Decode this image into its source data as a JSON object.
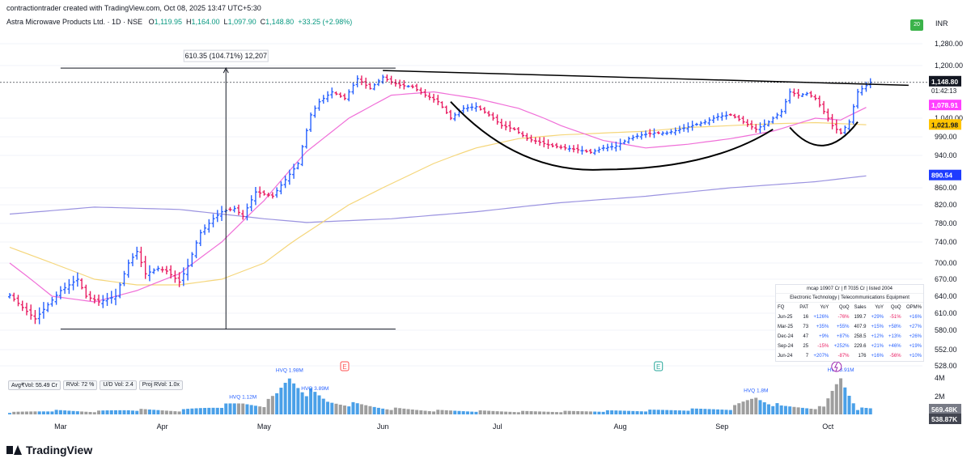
{
  "header": {
    "credit": "contractiontrader created with TradingView.com, Oct 08, 2025 13:47 UTC+5:30",
    "symbol": "Astra Microwave Products Ltd. · 1D · NSE",
    "o_label": "O",
    "o_val": "1,119.95",
    "h_label": "H",
    "h_val": "1,164.00",
    "l_label": "L",
    "l_val": "1,097.90",
    "c_label": "C",
    "c_val": "1,148.80",
    "change": "+33.25 (+2.98%)",
    "badge": "20",
    "currency": "INR"
  },
  "measure_label": "610.35 (104.71%) 12,207",
  "price_labels": {
    "last": "1,148.80",
    "countdown": "01:42:13",
    "ema_fast": "1,078.91",
    "ema_mid": "1,021.98",
    "ema_slow": "890.54",
    "volume_last": "569.48K",
    "volume_ma": "538.87K"
  },
  "volume_stats": [
    "Avg₹Vol: 55.49 Cr",
    "RVol: 72 %",
    "U/D Vol: 2.4",
    "Proj RVol: 1.0x"
  ],
  "volume_annotations": [
    "HVQ 1.12M",
    "HVQ 1.98M",
    "HVQ 3.89M",
    "HVQ 1.8M",
    "HVY 3.91M"
  ],
  "volume_axis": [
    "4M",
    "2M"
  ],
  "events": [
    "E",
    "E"
  ],
  "fundamentals": {
    "header": "mcap 10907 Cr  |  ff 7035 Cr  |  listed 2004",
    "sector": "Electronic Technology  |  Telecommunications Equipment",
    "columns": [
      "FQ",
      "PAT",
      "YoY",
      "QoQ",
      "Sales",
      "YoY",
      "QoQ",
      "OPM%"
    ],
    "rows": [
      [
        "Jun-25",
        "16",
        "+126%",
        "-76%",
        "199.7",
        "+29%",
        "-51%",
        "+16%"
      ],
      [
        "Mar-25",
        "73",
        "+35%",
        "+55%",
        "407.9",
        "+15%",
        "+58%",
        "+27%"
      ],
      [
        "Dec-24",
        "47",
        "+9%",
        "+87%",
        "258.5",
        "+12%",
        "+13%",
        "+26%"
      ],
      [
        "Sep-24",
        "25",
        "-15%",
        "+252%",
        "229.6",
        "+21%",
        "+46%",
        "+19%"
      ],
      [
        "Jun-24",
        "7",
        "+207%",
        "-87%",
        "176",
        "+16%",
        "-56%",
        "+10%"
      ]
    ]
  },
  "brand": "TradingView",
  "chart_data": {
    "type": "bar",
    "subtype": "ohlc",
    "ylim": [
      528,
      1280
    ],
    "y_ticks": [
      "1,280.00",
      "1,200.00",
      "1,148.80",
      "1,078.91",
      "1,040.00",
      "1,021.98",
      "990.00",
      "940.00",
      "890.54",
      "860.00",
      "820.00",
      "780.00",
      "740.00",
      "700.00",
      "670.00",
      "640.00",
      "610.00",
      "580.00",
      "552.00",
      "528.00"
    ],
    "months": [
      "Mar",
      "Apr",
      "May",
      "Jun",
      "Jul",
      "Aug",
      "Sep",
      "Oct"
    ],
    "colors": {
      "up": "#2962ff",
      "down": "#e91e63",
      "ema_fast": "#f06fd8",
      "ema_mid": "#f5d67a",
      "ema_slow": "#9b93e0",
      "pattern": "#000000"
    },
    "price_anchors": [
      [
        0,
        642
      ],
      [
        3,
        620
      ],
      [
        6,
        600
      ],
      [
        9,
        625
      ],
      [
        12,
        650
      ],
      [
        16,
        670
      ],
      [
        18,
        640
      ],
      [
        21,
        630
      ],
      [
        23,
        635
      ],
      [
        25,
        640
      ],
      [
        28,
        700
      ],
      [
        30,
        722
      ],
      [
        32,
        680
      ],
      [
        35,
        690
      ],
      [
        37,
        685
      ],
      [
        40,
        665
      ],
      [
        42,
        695
      ],
      [
        45,
        760
      ],
      [
        48,
        790
      ],
      [
        50,
        805
      ],
      [
        53,
        812
      ],
      [
        55,
        795
      ],
      [
        58,
        850
      ],
      [
        62,
        840
      ],
      [
        65,
        880
      ],
      [
        68,
        920
      ],
      [
        71,
        1050
      ],
      [
        73,
        1090
      ],
      [
        76,
        1120
      ],
      [
        79,
        1100
      ],
      [
        82,
        1160
      ],
      [
        85,
        1130
      ],
      [
        88,
        1165
      ],
      [
        90,
        1150
      ],
      [
        92,
        1140
      ],
      [
        95,
        1135
      ],
      [
        98,
        1110
      ],
      [
        101,
        1090
      ],
      [
        104,
        1040
      ],
      [
        107,
        1070
      ],
      [
        110,
        1075
      ],
      [
        113,
        1050
      ],
      [
        116,
        1020
      ],
      [
        119,
        1010
      ],
      [
        122,
        985
      ],
      [
        125,
        975
      ],
      [
        128,
        965
      ],
      [
        131,
        960
      ],
      [
        134,
        955
      ],
      [
        137,
        948
      ],
      [
        140,
        960
      ],
      [
        143,
        965
      ],
      [
        146,
        985
      ],
      [
        149,
        995
      ],
      [
        152,
        1000
      ],
      [
        155,
        1000
      ],
      [
        158,
        1010
      ],
      [
        161,
        1020
      ],
      [
        164,
        1030
      ],
      [
        167,
        1045
      ],
      [
        170,
        1050
      ],
      [
        173,
        1030
      ],
      [
        176,
        1010
      ],
      [
        179,
        1030
      ],
      [
        182,
        1060
      ],
      [
        184,
        1120
      ],
      [
        186,
        1110
      ],
      [
        188,
        1115
      ],
      [
        190,
        1100
      ],
      [
        192,
        1060
      ],
      [
        194,
        1020
      ],
      [
        196,
        1000
      ],
      [
        198,
        1030
      ],
      [
        200,
        1120
      ],
      [
        203,
        1148.8
      ]
    ],
    "ema_fast_anchors": [
      [
        0,
        700
      ],
      [
        10,
        640
      ],
      [
        20,
        630
      ],
      [
        30,
        650
      ],
      [
        40,
        680
      ],
      [
        50,
        740
      ],
      [
        60,
        830
      ],
      [
        70,
        950
      ],
      [
        80,
        1040
      ],
      [
        90,
        1110
      ],
      [
        100,
        1120
      ],
      [
        110,
        1100
      ],
      [
        120,
        1070
      ],
      [
        130,
        1020
      ],
      [
        140,
        980
      ],
      [
        150,
        960
      ],
      [
        160,
        970
      ],
      [
        170,
        985
      ],
      [
        180,
        1005
      ],
      [
        190,
        1040
      ],
      [
        196,
        1035
      ],
      [
        203,
        1078.91
      ]
    ],
    "ema_mid_anchors": [
      [
        0,
        730
      ],
      [
        10,
        700
      ],
      [
        20,
        670
      ],
      [
        30,
        660
      ],
      [
        40,
        660
      ],
      [
        50,
        670
      ],
      [
        60,
        700
      ],
      [
        70,
        760
      ],
      [
        80,
        820
      ],
      [
        90,
        870
      ],
      [
        100,
        920
      ],
      [
        110,
        960
      ],
      [
        120,
        985
      ],
      [
        130,
        995
      ],
      [
        140,
        1000
      ],
      [
        150,
        1005
      ],
      [
        160,
        1015
      ],
      [
        170,
        1020
      ],
      [
        180,
        1025
      ],
      [
        190,
        1028
      ],
      [
        203,
        1021.98
      ]
    ],
    "ema_slow_anchors": [
      [
        0,
        800
      ],
      [
        20,
        815
      ],
      [
        40,
        810
      ],
      [
        60,
        790
      ],
      [
        70,
        782
      ],
      [
        90,
        790
      ],
      [
        110,
        805
      ],
      [
        130,
        825
      ],
      [
        150,
        840
      ],
      [
        170,
        860
      ],
      [
        190,
        875
      ],
      [
        203,
        890.54
      ]
    ],
    "volume_anchors": [
      [
        0,
        0.2
      ],
      [
        10,
        0.4
      ],
      [
        20,
        0.3
      ],
      [
        28,
        0.5
      ],
      [
        40,
        0.4
      ],
      [
        48,
        0.8
      ],
      [
        55,
        1.12
      ],
      [
        60,
        1.0
      ],
      [
        63,
        1.98
      ],
      [
        66,
        3.89
      ],
      [
        70,
        2.5
      ],
      [
        75,
        1.3
      ],
      [
        80,
        1.1
      ],
      [
        90,
        0.6
      ],
      [
        100,
        0.4
      ],
      [
        110,
        0.35
      ],
      [
        120,
        0.3
      ],
      [
        130,
        0.3
      ],
      [
        140,
        0.35
      ],
      [
        150,
        0.4
      ],
      [
        160,
        0.5
      ],
      [
        170,
        0.6
      ],
      [
        176,
        1.8
      ],
      [
        182,
        0.8
      ],
      [
        192,
        0.7
      ],
      [
        196,
        3.91
      ],
      [
        200,
        0.6
      ],
      [
        203,
        0.57
      ]
    ],
    "volume_max_m": 4,
    "bars_count": 204,
    "measure": {
      "from": 582,
      "to": 1192.35,
      "change": "610.35 (104.71%)",
      "bars": "12,207"
    },
    "neckline": {
      "from": [
        88,
        1185
      ],
      "to": [
        212,
        1140
      ]
    },
    "cup_points": [
      [
        104,
        1090
      ],
      [
        120,
        955
      ],
      [
        140,
        905
      ],
      [
        165,
        935
      ],
      [
        180,
        1010
      ],
      [
        184,
        1015
      ],
      [
        192,
        950
      ],
      [
        200,
        1030
      ]
    ]
  }
}
